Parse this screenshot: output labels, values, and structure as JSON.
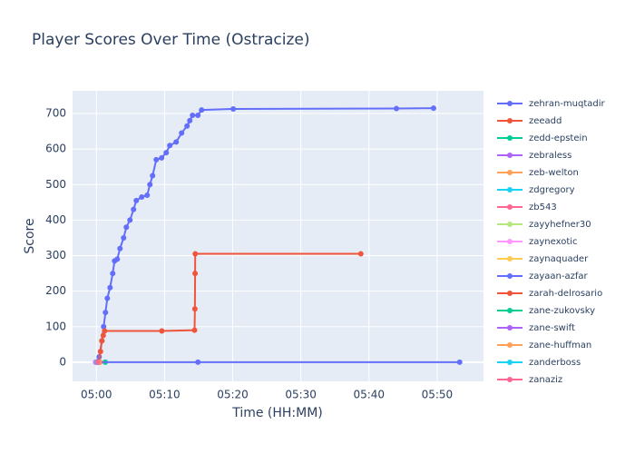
{
  "chart_data": {
    "type": "line",
    "title": "Player Scores Over Time (Ostracize)",
    "x_label": "Time (HH:MM)",
    "y_label": "Score",
    "xlim": [
      296.5,
      356.8
    ],
    "ylim": [
      -54,
      764
    ],
    "xticks": [
      {
        "value": 300,
        "label": "05:00"
      },
      {
        "value": 310,
        "label": "05:10"
      },
      {
        "value": 320,
        "label": "05:20"
      },
      {
        "value": 330,
        "label": "05:30"
      },
      {
        "value": 340,
        "label": "05:40"
      },
      {
        "value": 350,
        "label": "05:50"
      }
    ],
    "yticks": [
      0,
      100,
      200,
      300,
      400,
      500,
      600,
      700
    ],
    "grid": true,
    "legend": "right",
    "series": [
      {
        "name": "zehran-muqtadir",
        "color": "#636efa",
        "x": [
          299.87,
          300.4,
          300.8,
          301.06,
          301.33,
          301.6,
          302.0,
          302.39,
          302.66,
          303.06,
          303.46,
          303.99,
          304.39,
          304.92,
          305.45,
          305.85,
          306.65,
          307.45,
          307.85,
          308.24,
          308.78,
          309.57,
          310.24,
          310.77,
          311.7,
          312.5,
          313.3,
          313.7,
          314.1,
          314.89,
          315.43,
          320.08,
          344.02,
          349.47
        ],
        "values": [
          0,
          15,
          60,
          100,
          140,
          180,
          210,
          250,
          285,
          290,
          320,
          350,
          380,
          400,
          430,
          455,
          465,
          470,
          500,
          525,
          570,
          575,
          590,
          610,
          620,
          645,
          665,
          680,
          695,
          695,
          710,
          713,
          714,
          715
        ]
      },
      {
        "name": "zeeadd",
        "color": "#EF553B",
        "x": [
          300.4,
          300.6,
          300.8,
          301.0,
          301.2,
          309.6,
          314.4,
          314.45,
          314.48,
          314.5,
          338.8
        ],
        "values": [
          0,
          30,
          60,
          75,
          88,
          88,
          90,
          150,
          250,
          305,
          305
        ]
      },
      {
        "name": "zedd-epstein",
        "color": "#00cc96",
        "x": [
          301.3
        ],
        "values": [
          0
        ]
      },
      {
        "name": "zebraless",
        "color": "#ab63fa",
        "x": [
          300.1
        ],
        "values": [
          0
        ]
      },
      {
        "name": "zeb-welton",
        "color": "#FFA15A",
        "x": [
          300.0
        ],
        "values": [
          0
        ]
      },
      {
        "name": "zdgregory",
        "color": "#19d3f3",
        "x": [
          300.2
        ],
        "values": [
          0
        ]
      },
      {
        "name": "zb543",
        "color": "#FF6692",
        "x": [
          300.3
        ],
        "values": [
          0
        ]
      },
      {
        "name": "zayyhefner30",
        "color": "#B6E880",
        "x": [
          300.1
        ],
        "values": [
          0
        ]
      },
      {
        "name": "zaynexotic",
        "color": "#FF97FF",
        "x": [
          299.9
        ],
        "values": [
          0
        ]
      },
      {
        "name": "zaynaquader",
        "color": "#FECB52",
        "x": [
          300.2
        ],
        "values": [
          0
        ]
      },
      {
        "name": "zayaan-azfar",
        "color": "#636efa",
        "x": [
          300.2,
          314.9,
          353.3
        ],
        "values": [
          0,
          0,
          0
        ]
      },
      {
        "name": "zarah-delrosario",
        "color": "#EF553B",
        "x": [
          300.5
        ],
        "values": [
          0
        ]
      },
      {
        "name": "zane-zukovsky",
        "color": "#00cc96",
        "x": [
          300.3
        ],
        "values": [
          0
        ]
      },
      {
        "name": "zane-swift",
        "color": "#ab63fa",
        "x": [
          300.0
        ],
        "values": [
          0
        ]
      },
      {
        "name": "zane-huffman",
        "color": "#FFA15A",
        "x": [
          300.4
        ],
        "values": [
          0
        ]
      },
      {
        "name": "zanderboss",
        "color": "#19d3f3",
        "x": [
          300.1
        ],
        "values": [
          0
        ]
      },
      {
        "name": "zanaziz",
        "color": "#FF6692",
        "x": [
          300.2
        ],
        "values": [
          0
        ]
      }
    ]
  }
}
